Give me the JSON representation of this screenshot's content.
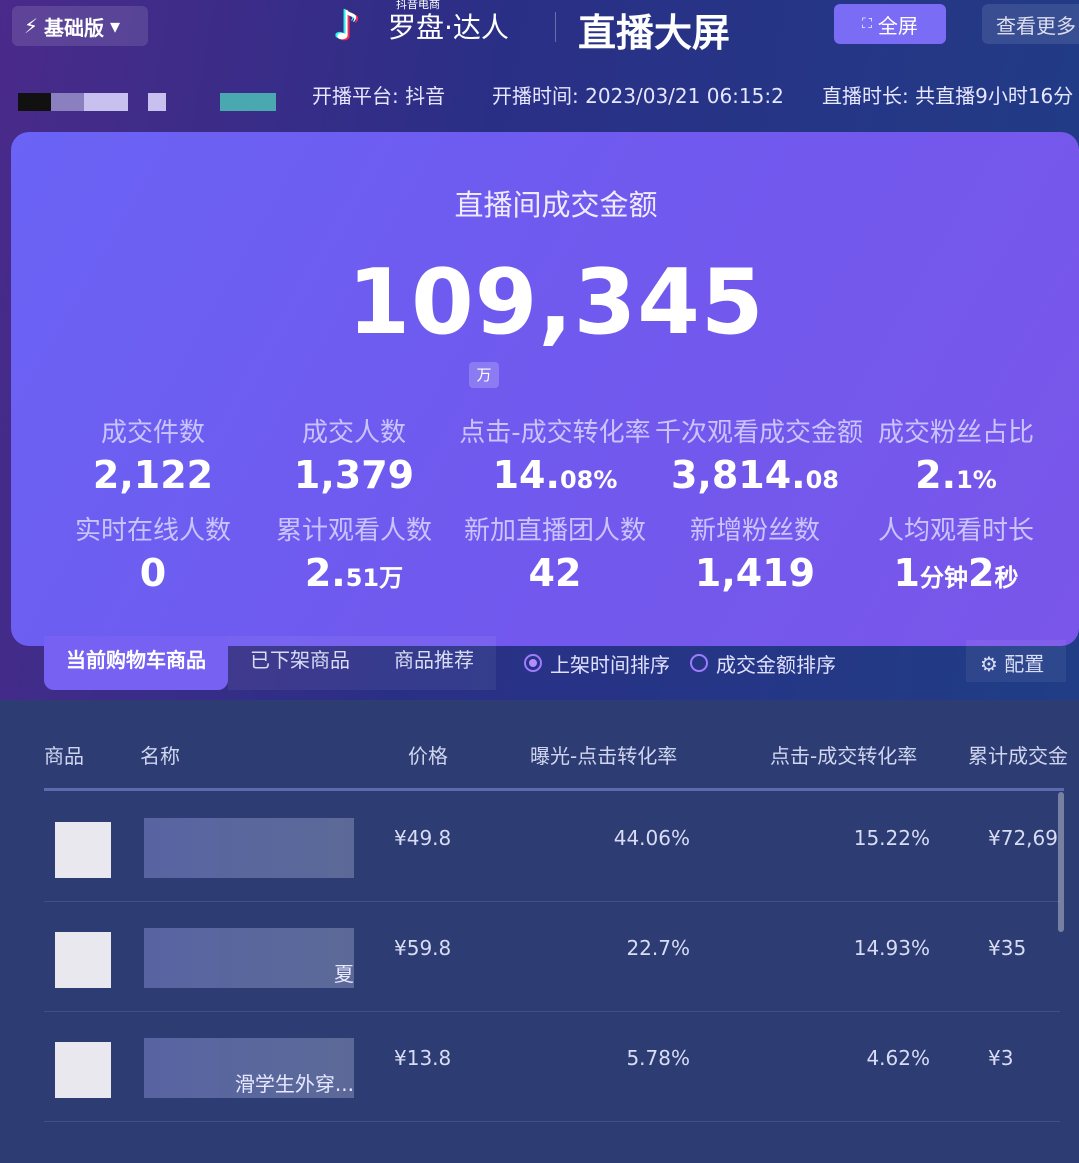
{
  "header": {
    "version": "基础版",
    "logo_sub": "抖音电商",
    "logo_name": "罗盘·达人",
    "title": "直播大屏",
    "fullscreen": "全屏",
    "more": "查看更多"
  },
  "info": {
    "platform": "开播平台: 抖音",
    "start_time": "开播时间: 2023/03/21 06:15:2",
    "duration": "直播时长: 共直播9小时16分"
  },
  "hero": {
    "title": "直播间成交金额",
    "amount": "109,345",
    "unit": "万"
  },
  "metrics": [
    {
      "label": "成交件数",
      "value": "2,122",
      "suffix": ""
    },
    {
      "label": "成交人数",
      "value": "1,379",
      "suffix": ""
    },
    {
      "label": "点击-成交转化率",
      "value": "14.",
      "suffix": "08%"
    },
    {
      "label": "千次观看成交金额",
      "value": "3,814.",
      "suffix": "08"
    },
    {
      "label": "成交粉丝占比",
      "value": "2.",
      "suffix": "1%"
    },
    {
      "label": "实时在线人数",
      "value": "0",
      "suffix": ""
    },
    {
      "label": "累计观看人数",
      "value": "2.",
      "suffix": "51万"
    },
    {
      "label": "新加直播团人数",
      "value": "42",
      "suffix": ""
    },
    {
      "label": "新增粉丝数",
      "value": "1,419",
      "suffix": ""
    },
    {
      "label": "人均观看时长",
      "value": "1",
      "suffix": "分钟",
      "value2": "2",
      "suffix2": "秒"
    }
  ],
  "tabs": [
    "当前购物车商品",
    "已下架商品",
    "商品推荐"
  ],
  "sort": [
    {
      "label": "上架时间排序",
      "selected": true
    },
    {
      "label": "成交金额排序",
      "selected": false
    }
  ],
  "config": "配置",
  "columns": [
    "商品",
    "名称",
    "价格",
    "曝光-点击转化率",
    "点击-成交转化率",
    "累计成交金"
  ],
  "rows": [
    {
      "name": "",
      "price": "¥49.8",
      "exposure": "44.06%",
      "click": "15.22%",
      "total": "¥72,69"
    },
    {
      "name": "夏",
      "price": "¥59.8",
      "exposure": "22.7%",
      "click": "14.93%",
      "total": "¥35"
    },
    {
      "name": "滑学生外穿...",
      "price": "¥13.8",
      "exposure": "5.78%",
      "click": "4.62%",
      "total": "¥3"
    }
  ],
  "colors": {
    "accent": "#7661f3",
    "hero": "#6a63f5",
    "table": "#2d3c72"
  }
}
